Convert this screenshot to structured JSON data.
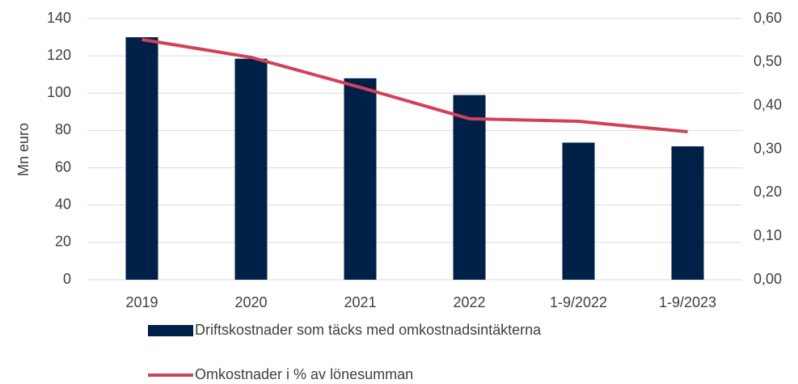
{
  "chart_data": {
    "type": "bar-line",
    "y_label": "Mn euro",
    "categories": [
      "2019",
      "2020",
      "2021",
      "2022",
      "1-9/2022",
      "1-9/2023"
    ],
    "series": [
      {
        "name": "Driftskostnader som täcks med omkostnadsintäkterna",
        "type": "bar",
        "color": "#002147",
        "values": [
          130,
          118.5,
          108,
          99,
          73.5,
          71.5
        ]
      },
      {
        "name": "Omkostnader i % av lönesumman",
        "type": "line",
        "axis": "y2",
        "color": "#d2405a",
        "values": [
          0.552,
          0.511,
          0.442,
          0.37,
          0.364,
          0.34
        ]
      }
    ],
    "ylim": [
      0,
      140
    ],
    "yticks": [
      0,
      20,
      40,
      60,
      80,
      100,
      120,
      140
    ],
    "y2lim": [
      0,
      0.6
    ],
    "y2ticks": [
      {
        "value": 0,
        "label": "0,00"
      },
      {
        "value": 0.1,
        "label": "0,10"
      },
      {
        "value": 0.2,
        "label": "0,20"
      },
      {
        "value": 0.3,
        "label": "0,30"
      },
      {
        "value": 0.4,
        "label": "0,40"
      },
      {
        "value": 0.5,
        "label": "0,50"
      },
      {
        "value": 0.6,
        "label": "0,60"
      }
    ],
    "grid": true,
    "legend": "bottom"
  }
}
